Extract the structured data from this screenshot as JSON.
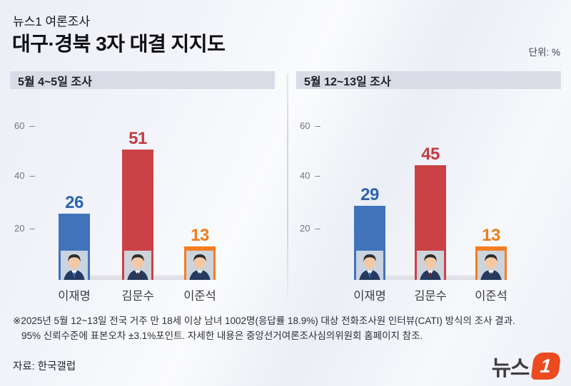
{
  "header": {
    "kicker": "뉴스1 여론조사",
    "title": "대구·경북 3자 대결 지지도",
    "unit_label": "단위: %"
  },
  "tick_dash": "–",
  "chart_data": [
    {
      "type": "bar",
      "title": "5월 4~5일 조사",
      "categories": [
        "이재명",
        "김문수",
        "이준석"
      ],
      "values": [
        26,
        51,
        13
      ],
      "bar_colors": [
        "#4173bb",
        "#cc4146",
        "#f57d22"
      ],
      "label_colors": [
        "#2e63b2",
        "#c43b40",
        "#ef7c1b"
      ],
      "yticks": [
        20,
        40,
        60
      ],
      "ylim": [
        0,
        70
      ],
      "unit": "%",
      "grid": false,
      "legend": false
    },
    {
      "type": "bar",
      "title": "5월 12~13일 조사",
      "categories": [
        "이재명",
        "김문수",
        "이준석"
      ],
      "values": [
        29,
        45,
        13
      ],
      "bar_colors": [
        "#4173bb",
        "#cc4146",
        "#f57d22"
      ],
      "label_colors": [
        "#2e63b2",
        "#c43b40",
        "#ef7c1b"
      ],
      "yticks": [
        20,
        40,
        60
      ],
      "ylim": [
        0,
        70
      ],
      "unit": "%",
      "grid": false,
      "legend": false
    }
  ],
  "footnote": {
    "line1": "※2025년 5월 12~13일 전국 거주 만 18세 이상 남녀 1002명(응답률 18.9%) 대상 전화조사원 인터뷰(CATI) 방식의 조사 결과.",
    "line2": "95% 신뢰수준에 표본오차 ±3.1%포인트. 자세한 내용은 중앙선거여론조사심의위원회 홈페이지 참조."
  },
  "source": "자료: 한국갤럽",
  "logo": {
    "text": "뉴스",
    "badge": "1",
    "badge_color": "#ec4a21"
  }
}
